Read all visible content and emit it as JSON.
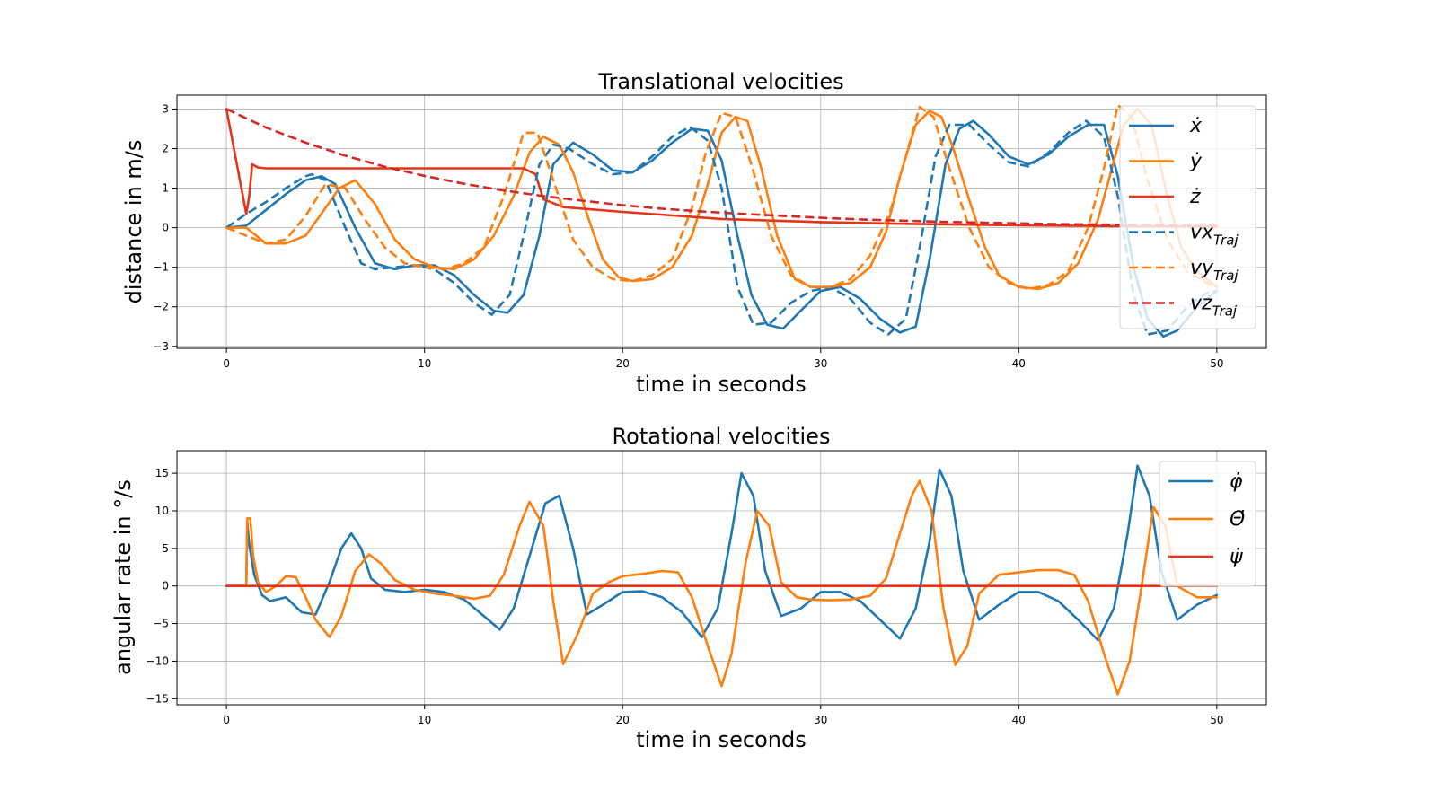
{
  "chart_data": [
    {
      "type": "line",
      "title": "Translational velocities",
      "xlabel": "time in seconds",
      "ylabel": "distance in m/s",
      "xlim": [
        -2.5,
        52.5
      ],
      "ylim": [
        -3.05,
        3.35
      ],
      "xticks": [
        0,
        10,
        20,
        30,
        40,
        50
      ],
      "yticks": [
        -3,
        -2,
        -1,
        0,
        1,
        2,
        3
      ],
      "grid": true,
      "legend_position": "right",
      "series": [
        {
          "name": "ẋ",
          "label_base": "ẋ",
          "label_sub": "",
          "color": "#1f77b4",
          "dash": "solid",
          "x": [
            0,
            1,
            2,
            3,
            4,
            4.8,
            5.5,
            6.5,
            7.5,
            8.5,
            9.5,
            10.5,
            11.5,
            12.5,
            13.5,
            14.2,
            15,
            15.8,
            16.5,
            17.5,
            18.5,
            19.5,
            20.5,
            21.5,
            22.5,
            23.5,
            24.3,
            25,
            25.8,
            26.5,
            27.3,
            28.1,
            29,
            30,
            31,
            32,
            33,
            34,
            34.8,
            35.5,
            36.3,
            37,
            37.7,
            38.5,
            39.5,
            40.5,
            41.5,
            42.5,
            43.5,
            44.3,
            45,
            45.8,
            46.5,
            47.3,
            48,
            49,
            50
          ],
          "y": [
            0,
            0.05,
            0.45,
            0.85,
            1.2,
            1.3,
            1.1,
            0,
            -0.9,
            -1.05,
            -0.95,
            -0.95,
            -1.2,
            -1.7,
            -2.1,
            -2.15,
            -1.7,
            -0.2,
            1.6,
            2.15,
            1.85,
            1.45,
            1.4,
            1.7,
            2.15,
            2.5,
            2.45,
            1.7,
            -0.2,
            -1.7,
            -2.45,
            -2.55,
            -2.1,
            -1.6,
            -1.5,
            -1.8,
            -2.3,
            -2.65,
            -2.5,
            -0.8,
            1.6,
            2.5,
            2.7,
            2.35,
            1.8,
            1.6,
            1.85,
            2.3,
            2.6,
            2.6,
            1.3,
            -1.0,
            -2.3,
            -2.75,
            -2.6,
            -2.0,
            -1.6
          ]
        },
        {
          "name": "ẏ",
          "label_base": "ẏ",
          "label_sub": "",
          "color": "#ff7f0e",
          "dash": "solid",
          "x": [
            0,
            1,
            2,
            3,
            4,
            5,
            5.7,
            6.5,
            7.5,
            8.5,
            9.5,
            10.5,
            11.5,
            12.5,
            13.5,
            14.5,
            15.3,
            16,
            16.8,
            17.5,
            18.3,
            19,
            19.8,
            20.5,
            21.5,
            22.5,
            23.5,
            24.3,
            25,
            25.7,
            26.3,
            27,
            27.8,
            28.7,
            29.5,
            30.5,
            31.5,
            32.5,
            33.3,
            34,
            34.8,
            35.5,
            36.1,
            36.7,
            37.5,
            38.3,
            39,
            40,
            41,
            42,
            43,
            44,
            44.7,
            45.3,
            46,
            46.7,
            47.5,
            48.2,
            49,
            50
          ],
          "y": [
            0,
            0,
            -0.4,
            -0.4,
            -0.2,
            0.5,
            1.0,
            1.2,
            0.6,
            -0.3,
            -0.8,
            -1.0,
            -1.05,
            -0.8,
            -0.2,
            0.8,
            1.9,
            2.3,
            2.1,
            1.4,
            0.2,
            -0.8,
            -1.25,
            -1.35,
            -1.3,
            -1.0,
            -0.2,
            1.1,
            2.4,
            2.8,
            2.7,
            1.5,
            -0.2,
            -1.3,
            -1.5,
            -1.5,
            -1.4,
            -1.0,
            -0.1,
            1.3,
            2.6,
            2.95,
            2.8,
            2.0,
            0.7,
            -0.5,
            -1.2,
            -1.5,
            -1.55,
            -1.4,
            -0.9,
            0.2,
            1.5,
            2.6,
            3.0,
            2.6,
            0.8,
            -0.5,
            -1.1,
            -1.5
          ]
        },
        {
          "name": "ż",
          "label_base": "ż",
          "label_sub": "",
          "color": "#e5341a",
          "dash": "solid",
          "x": [
            0,
            1,
            1.15,
            1.3,
            1.6,
            2,
            4,
            6,
            8,
            10,
            12,
            14,
            15,
            15.6,
            16,
            17,
            20,
            25,
            30,
            35,
            40,
            45,
            50
          ],
          "y": [
            3.0,
            0.35,
            0.8,
            1.6,
            1.52,
            1.5,
            1.5,
            1.5,
            1.5,
            1.5,
            1.5,
            1.5,
            1.5,
            1.35,
            0.72,
            0.52,
            0.4,
            0.22,
            0.14,
            0.09,
            0.06,
            0.04,
            0.03
          ]
        },
        {
          "name": "vx_Traj",
          "label_base": "vx",
          "label_sub": "Traj",
          "color": "#1f77b4",
          "dash": "dashed",
          "x": [
            0,
            1,
            2,
            3,
            4,
            4.3,
            5,
            6,
            6.8,
            7.5,
            8.5,
            9.5,
            10.5,
            11.5,
            12.5,
            13.4,
            14.3,
            15,
            15.8,
            16.5,
            17.3,
            18.5,
            19.5,
            20.5,
            21.5,
            22.5,
            23.4,
            24.3,
            25,
            25.8,
            26.6,
            27.5,
            28.5,
            29.5,
            30.5,
            31.5,
            32.5,
            33.4,
            34.3,
            35,
            35.8,
            36.5,
            37.5,
            38.5,
            39.5,
            40.5,
            41.5,
            42.5,
            43.4,
            44.3,
            45,
            45.8,
            46.5,
            47.5,
            48.5,
            49.5,
            50
          ],
          "y": [
            0,
            0.35,
            0.65,
            1.0,
            1.3,
            1.35,
            1.2,
            0.0,
            -0.9,
            -1.05,
            -1.0,
            -0.95,
            -1.05,
            -1.4,
            -1.9,
            -2.2,
            -1.7,
            -0.2,
            1.6,
            2.1,
            2.0,
            1.6,
            1.35,
            1.4,
            1.8,
            2.3,
            2.55,
            2.2,
            1.0,
            -1.5,
            -2.45,
            -2.4,
            -1.9,
            -1.6,
            -1.5,
            -1.8,
            -2.4,
            -2.7,
            -2.3,
            -0.5,
            1.8,
            2.6,
            2.6,
            2.1,
            1.65,
            1.55,
            1.9,
            2.4,
            2.7,
            2.3,
            0.8,
            -1.7,
            -2.7,
            -2.6,
            -2.0,
            -1.65,
            -1.6
          ]
        },
        {
          "name": "vy_Traj",
          "label_base": "vy",
          "label_sub": "Traj",
          "color": "#ff7f0e",
          "dash": "dashed",
          "x": [
            0,
            1,
            2,
            3,
            4,
            5,
            6,
            7,
            8,
            9,
            10,
            11,
            12,
            13,
            14,
            15,
            15.7,
            16.5,
            17.5,
            18.5,
            19.5,
            20.5,
            21.5,
            22.5,
            23.5,
            24.2,
            25,
            25.7,
            26.5,
            27.5,
            28.5,
            29.5,
            30.5,
            31.5,
            32.5,
            33.5,
            34.3,
            35,
            35.7,
            36.5,
            37.5,
            38.5,
            39.5,
            40.5,
            41.5,
            42.5,
            43.5,
            44.3,
            45,
            45.7,
            46.5,
            47.5,
            48.5,
            49.5,
            50
          ],
          "y": [
            0,
            -0.2,
            -0.4,
            -0.3,
            0.3,
            1.1,
            1.0,
            0.2,
            -0.5,
            -0.9,
            -1.0,
            -1.05,
            -0.9,
            -0.5,
            0.8,
            2.4,
            2.4,
            1.2,
            -0.3,
            -1.0,
            -1.3,
            -1.35,
            -1.2,
            -0.8,
            0.5,
            1.9,
            2.9,
            2.8,
            1.6,
            -0.2,
            -1.2,
            -1.5,
            -1.5,
            -1.3,
            -0.7,
            0.4,
            1.8,
            3.05,
            2.8,
            1.5,
            0.0,
            -1.0,
            -1.4,
            -1.55,
            -1.45,
            -1.1,
            0.0,
            1.5,
            3.1,
            2.8,
            1.2,
            -0.3,
            -1.1,
            -1.4,
            -1.5
          ]
        },
        {
          "name": "vz_Traj",
          "label_base": "vz",
          "label_sub": "Traj",
          "color": "#d62728",
          "dash": "dashed",
          "x": [
            0,
            2,
            4,
            6,
            8,
            10,
            12,
            14,
            16,
            18,
            20,
            22,
            24,
            26,
            28,
            30,
            32,
            34,
            36,
            38,
            40,
            42,
            44,
            46,
            48,
            50
          ],
          "y": [
            3.0,
            2.53,
            2.15,
            1.82,
            1.54,
            1.31,
            1.11,
            0.94,
            0.8,
            0.68,
            0.57,
            0.48,
            0.41,
            0.35,
            0.3,
            0.25,
            0.21,
            0.18,
            0.15,
            0.13,
            0.11,
            0.09,
            0.08,
            0.07,
            0.06,
            0.05
          ]
        }
      ]
    },
    {
      "type": "line",
      "title": "Rotational velocities",
      "xlabel": "time in seconds",
      "ylabel": "angular rate in °/s",
      "xlim": [
        -2.5,
        52.5
      ],
      "ylim": [
        -15.8,
        18.0
      ],
      "xticks": [
        0,
        10,
        20,
        30,
        40,
        50
      ],
      "yticks": [
        -15,
        -10,
        -5,
        0,
        5,
        10,
        15
      ],
      "grid": true,
      "legend_position": "upper right",
      "series": [
        {
          "name": "φ̇",
          "label_base": "φ̇",
          "label_sub": "",
          "color": "#1f77b4",
          "dash": "solid",
          "x": [
            0,
            1,
            1.05,
            1.15,
            1.4,
            1.8,
            2.2,
            3,
            3.8,
            4.5,
            5.2,
            5.8,
            6.3,
            6.8,
            7.3,
            8,
            9,
            10,
            11,
            12,
            13,
            13.8,
            14.5,
            15.3,
            16.1,
            16.8,
            17.5,
            18.2,
            19,
            20,
            21,
            22,
            23,
            24,
            24.8,
            25.5,
            26,
            26.6,
            27.2,
            28,
            29,
            30,
            31,
            32,
            33,
            34,
            34.8,
            35.5,
            36,
            36.6,
            37.2,
            38,
            39,
            40,
            41,
            42,
            43,
            44,
            44.8,
            45.5,
            46,
            46.6,
            47.2,
            48,
            49,
            50
          ],
          "y": [
            0,
            0,
            8.5,
            5.5,
            1.5,
            -1.2,
            -2,
            -1.5,
            -3.5,
            -3.8,
            0.5,
            5,
            7,
            5,
            1,
            -0.5,
            -0.8,
            -0.5,
            -0.8,
            -1.8,
            -4,
            -5.8,
            -3,
            4,
            11,
            12,
            5,
            -3.8,
            -2.5,
            -0.8,
            -0.7,
            -1.5,
            -3.5,
            -6.8,
            -3,
            7,
            15,
            12,
            2,
            -4,
            -3,
            -0.8,
            -0.8,
            -2,
            -4.5,
            -7,
            -3,
            6,
            15.5,
            12,
            2,
            -4.5,
            -2.5,
            -0.8,
            -0.8,
            -2,
            -4.5,
            -7.2,
            -3,
            7,
            16,
            12,
            2,
            -4.5,
            -2.5,
            -1.2
          ]
        },
        {
          "name": "Θ̇",
          "label_base": "Θ̇",
          "label_sub": "",
          "color": "#ff7f0e",
          "dash": "solid",
          "x": [
            0,
            1,
            1.05,
            1.2,
            1.35,
            1.6,
            2,
            2.5,
            3,
            3.5,
            4,
            4.5,
            5.2,
            5.8,
            6.5,
            7.2,
            7.8,
            8.5,
            9.5,
            10.5,
            11.5,
            12.5,
            13.3,
            14,
            14.8,
            15.3,
            16,
            16.5,
            17,
            17.8,
            18.5,
            19.3,
            20,
            21,
            22,
            22.8,
            23.5,
            24.3,
            25,
            25.5,
            26.2,
            26.8,
            27.4,
            28,
            28.8,
            29.5,
            30.5,
            31.5,
            32.5,
            33.3,
            34,
            34.6,
            35,
            35.6,
            36.2,
            36.8,
            37.4,
            38,
            39,
            40,
            41,
            42,
            42.8,
            43.5,
            44.3,
            45,
            45.6,
            46.2,
            46.8,
            47.4,
            48,
            49,
            50
          ],
          "y": [
            0,
            0,
            9,
            9,
            4,
            0.5,
            -0.8,
            0,
            1.3,
            1.2,
            -1.5,
            -4.5,
            -6.8,
            -4,
            2,
            4.2,
            3,
            0.8,
            -0.5,
            -1,
            -1.3,
            -1.7,
            -1.3,
            1.5,
            8,
            11.2,
            8,
            -2,
            -10.4,
            -6,
            -1,
            0.5,
            1.3,
            1.6,
            2,
            1.8,
            -1.5,
            -8,
            -13.3,
            -9,
            3,
            10,
            8,
            0.5,
            -1.5,
            -1.8,
            -1.9,
            -1.8,
            -1.3,
            1,
            7,
            12,
            14,
            10,
            -3,
            -10.5,
            -8,
            -1,
            1.5,
            1.8,
            2.1,
            2.1,
            1.5,
            -2,
            -9,
            -14.4,
            -10,
            0,
            10.5,
            8,
            0,
            -1.5,
            -1.5
          ]
        },
        {
          "name": "ψ̇",
          "label_base": "ψ̇",
          "label_sub": "",
          "color": "#e5341a",
          "dash": "solid",
          "x": [
            0,
            5,
            10,
            15,
            20,
            25,
            30,
            35,
            40,
            45,
            50
          ],
          "y": [
            0,
            0,
            0,
            0,
            0,
            0,
            0,
            0,
            0,
            0,
            0
          ]
        }
      ]
    }
  ]
}
